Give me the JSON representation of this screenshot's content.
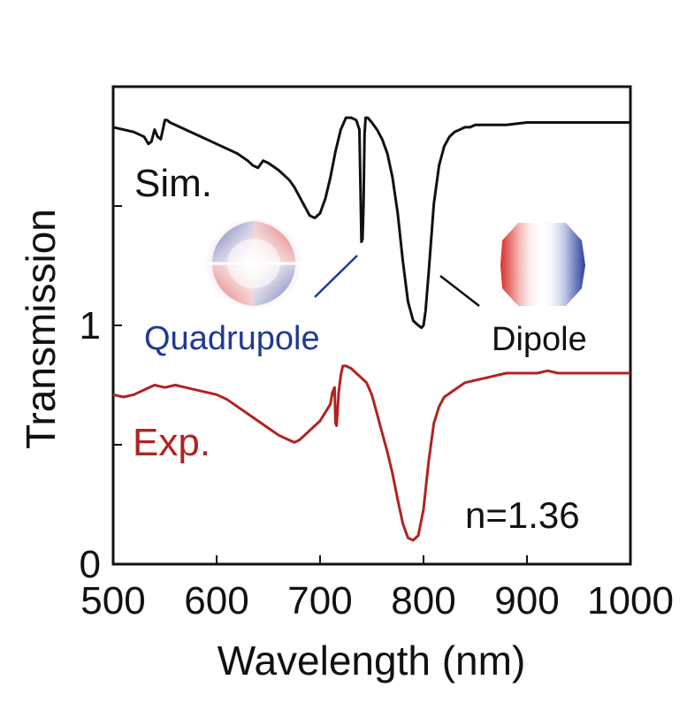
{
  "chart_data": {
    "type": "line",
    "xlabel": "Wavelength (nm)",
    "ylabel": "Transmission",
    "xlim": [
      500,
      1000
    ],
    "ylim": [
      0,
      2
    ],
    "x_ticks": [
      "500",
      "600",
      "700",
      "800",
      "900",
      "1000"
    ],
    "y_tick_values": [
      0,
      0.5,
      1,
      1.5
    ],
    "y_tick_labels": [
      "0",
      "",
      "1",
      ""
    ],
    "grid": false,
    "series": [
      {
        "name": "Sim.",
        "color": "#111111",
        "x": [
          500,
          510,
          520,
          530,
          534,
          537,
          540,
          543,
          546,
          548,
          550,
          552,
          555,
          560,
          570,
          580,
          590,
          600,
          610,
          620,
          630,
          635,
          640,
          645,
          650,
          660,
          670,
          675,
          680,
          685,
          690,
          695,
          700,
          705,
          710,
          715,
          720,
          725,
          730,
          735,
          738,
          740,
          741,
          742,
          743,
          744,
          746,
          748,
          750,
          755,
          760,
          765,
          770,
          775,
          780,
          785,
          790,
          795,
          798,
          800,
          802,
          805,
          810,
          815,
          820,
          825,
          830,
          835,
          840,
          845,
          850,
          860,
          870,
          880,
          900,
          920,
          950,
          980,
          1000
        ],
        "y": [
          1.83,
          1.82,
          1.81,
          1.79,
          1.76,
          1.77,
          1.82,
          1.79,
          1.78,
          1.82,
          1.86,
          1.86,
          1.85,
          1.84,
          1.82,
          1.8,
          1.78,
          1.76,
          1.74,
          1.72,
          1.69,
          1.67,
          1.66,
          1.69,
          1.68,
          1.65,
          1.61,
          1.58,
          1.54,
          1.5,
          1.46,
          1.45,
          1.47,
          1.53,
          1.62,
          1.73,
          1.82,
          1.87,
          1.87,
          1.86,
          1.82,
          1.35,
          1.36,
          1.5,
          1.8,
          1.87,
          1.87,
          1.86,
          1.85,
          1.82,
          1.78,
          1.72,
          1.62,
          1.47,
          1.27,
          1.1,
          1.02,
          1.0,
          0.99,
          1.0,
          1.06,
          1.22,
          1.51,
          1.67,
          1.75,
          1.79,
          1.81,
          1.82,
          1.83,
          1.83,
          1.84,
          1.84,
          1.84,
          1.84,
          1.85,
          1.85,
          1.85,
          1.85,
          1.85
        ]
      },
      {
        "name": "Exp.",
        "color": "#b22222",
        "x": [
          500,
          510,
          520,
          530,
          540,
          550,
          560,
          570,
          580,
          590,
          600,
          610,
          620,
          630,
          640,
          650,
          660,
          670,
          675,
          680,
          690,
          700,
          710,
          712,
          714,
          715,
          716,
          718,
          720,
          722,
          725,
          730,
          735,
          740,
          745,
          750,
          755,
          760,
          765,
          770,
          775,
          780,
          785,
          790,
          795,
          800,
          805,
          810,
          815,
          820,
          830,
          840,
          850,
          860,
          870,
          880,
          890,
          900,
          910,
          920,
          930,
          940,
          950,
          960,
          970,
          980,
          990,
          1000
        ],
        "y": [
          0.71,
          0.7,
          0.71,
          0.73,
          0.75,
          0.74,
          0.75,
          0.74,
          0.73,
          0.72,
          0.71,
          0.69,
          0.66,
          0.63,
          0.6,
          0.57,
          0.54,
          0.52,
          0.51,
          0.52,
          0.56,
          0.6,
          0.67,
          0.72,
          0.74,
          0.59,
          0.58,
          0.72,
          0.79,
          0.83,
          0.83,
          0.82,
          0.8,
          0.78,
          0.76,
          0.71,
          0.63,
          0.55,
          0.47,
          0.38,
          0.27,
          0.17,
          0.11,
          0.1,
          0.12,
          0.23,
          0.43,
          0.59,
          0.66,
          0.7,
          0.73,
          0.76,
          0.77,
          0.78,
          0.79,
          0.8,
          0.8,
          0.8,
          0.8,
          0.81,
          0.8,
          0.8,
          0.8,
          0.8,
          0.8,
          0.8,
          0.8,
          0.8
        ]
      }
    ],
    "annotations": {
      "sim_label": "Sim.",
      "exp_label": "Exp.",
      "quadrupole_label": "Quadrupole",
      "dipole_label": "Dipole",
      "index_label": "n=1.36"
    },
    "colors": {
      "sim": "#111111",
      "exp": "#b22222",
      "field_red": "#d9302c",
      "field_blue": "#2a3f9e",
      "quadrupole_text": "#1f3a93"
    }
  }
}
